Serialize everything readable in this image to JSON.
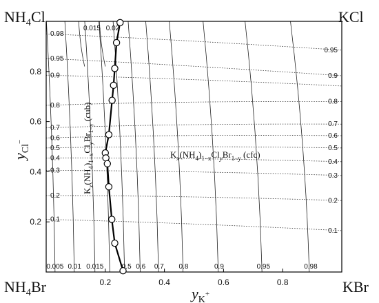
{
  "chart_data": {
    "type": "line",
    "corners": {
      "top_left": "NH4Cl",
      "top_right": "KCl",
      "bottom_left": "NH4Br",
      "bottom_right": "KBr"
    },
    "x_axis": {
      "label": "yK+",
      "range": [
        0.0,
        1.0
      ],
      "ticks": [
        "0.2",
        "0.4",
        "0.6",
        "0.8"
      ],
      "tick_values": [
        0.2,
        0.4,
        0.6,
        0.8
      ]
    },
    "y_axis": {
      "label": "yCl−",
      "range": [
        0.0,
        1.0
      ],
      "ticks": [
        "0.2",
        "0.4",
        "0.6",
        "0.8"
      ],
      "tick_values": [
        0.2,
        0.4,
        0.6,
        0.8
      ]
    },
    "phase_labels": {
      "cubic": "Kx(NH4)1−xClyBr1−y (cub)",
      "fcc": "Kx(NH4)1−xClyBr1−y (cfc)"
    },
    "iso_x_labels": {
      "top": [
        {
          "text": "0.015",
          "x": 0.155
        },
        {
          "text": "0.02",
          "x": 0.225
        }
      ],
      "bottom": [
        {
          "text": "0.005",
          "x": 0.03
        },
        {
          "text": "0.01",
          "x": 0.096
        },
        {
          "text": "0.015",
          "x": 0.165
        },
        {
          "text": "0.5",
          "x": 0.272
        },
        {
          "text": "0.6",
          "x": 0.32
        },
        {
          "text": "0.7",
          "x": 0.382
        },
        {
          "text": "0.8",
          "x": 0.465
        },
        {
          "text": "0.9",
          "x": 0.585
        },
        {
          "text": "0.95",
          "x": 0.735
        },
        {
          "text": "0.98",
          "x": 0.895
        }
      ]
    },
    "iso_y_labels": {
      "left": [
        {
          "text": "0.98",
          "y": 0.95
        },
        {
          "text": "0.95",
          "y": 0.852
        },
        {
          "text": "0.9",
          "y": 0.785
        },
        {
          "text": "0.8",
          "y": 0.665
        },
        {
          "text": "0.7",
          "y": 0.575
        },
        {
          "text": "0.6",
          "y": 0.535
        },
        {
          "text": "0.5",
          "y": 0.495
        },
        {
          "text": "0.4",
          "y": 0.455
        },
        {
          "text": "0.3",
          "y": 0.405
        },
        {
          "text": "0.2",
          "y": 0.305
        },
        {
          "text": "0.1",
          "y": 0.21
        }
      ],
      "right": [
        {
          "text": "0.95",
          "y": 0.885
        },
        {
          "text": "0.9",
          "y": 0.783
        },
        {
          "text": "0.8",
          "y": 0.68
        },
        {
          "text": "0.7",
          "y": 0.59
        },
        {
          "text": "0.6",
          "y": 0.544
        },
        {
          "text": "0.5",
          "y": 0.495
        },
        {
          "text": "0.4",
          "y": 0.44
        },
        {
          "text": "0.3",
          "y": 0.385
        },
        {
          "text": "0.2",
          "y": 0.285
        },
        {
          "text": "0.1",
          "y": 0.165
        }
      ]
    },
    "boundary": {
      "name": "",
      "x": [
        0.25,
        0.238,
        0.232,
        0.228,
        0.223,
        0.212,
        0.2,
        0.202,
        0.207,
        0.212,
        0.222,
        0.232,
        0.26
      ],
      "y": [
        0.995,
        0.915,
        0.812,
        0.745,
        0.685,
        0.548,
        0.475,
        0.455,
        0.432,
        0.34,
        0.21,
        0.115,
        0.005
      ]
    }
  }
}
